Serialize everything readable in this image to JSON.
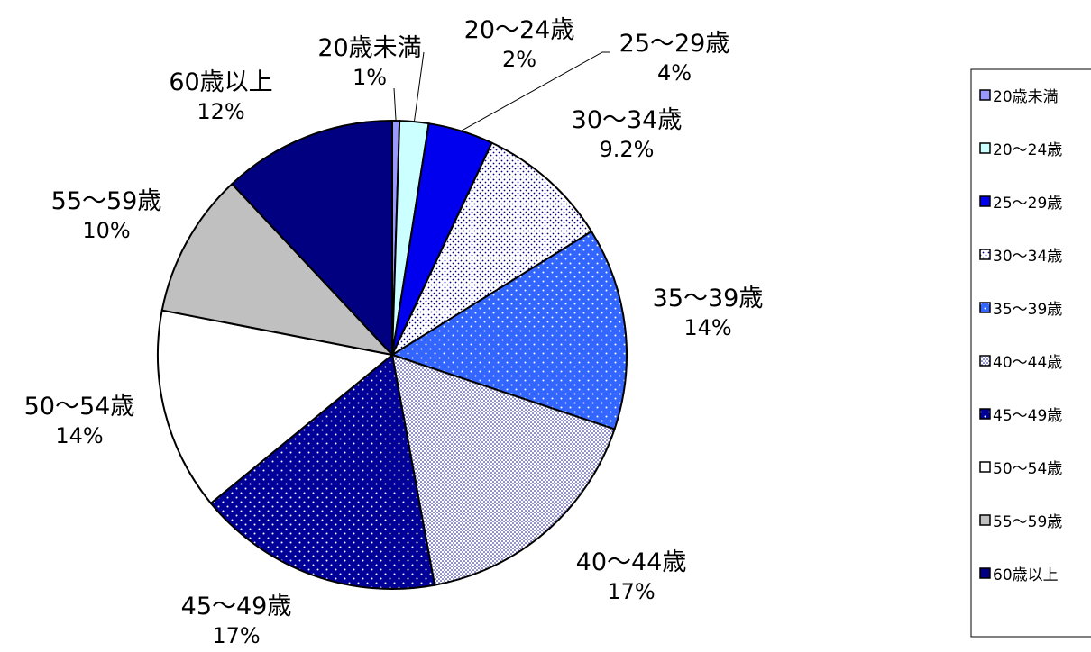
{
  "chart_data": {
    "type": "pie",
    "title": "",
    "categories": [
      "20歳未満",
      "20～24歳",
      "25～29歳",
      "30～34歳",
      "35～39歳",
      "40～44歳",
      "45～49歳",
      "50～54歳",
      "55～59歳",
      "60歳以上"
    ],
    "values": [
      0.5,
      2,
      4.5,
      9.2,
      14,
      17,
      17,
      14,
      10,
      12
    ],
    "percent_labels": [
      "1%",
      "2%",
      "4%",
      "9.2%",
      "14%",
      "17%",
      "17%",
      "14%",
      "10%",
      "12%"
    ],
    "legend_placement": "right",
    "series": [
      {
        "name": "20歳未満",
        "color": "#9999ff",
        "fill": "solid"
      },
      {
        "name": "20～24歳",
        "color": "#ccffff",
        "fill": "solid"
      },
      {
        "name": "25～29歳",
        "color": "#0000ee",
        "fill": "solid"
      },
      {
        "name": "30～34歳",
        "color": "#ffffff",
        "fill": "dots-dark-sparse"
      },
      {
        "name": "35～39歳",
        "color": "#3366ff",
        "fill": "dots-light"
      },
      {
        "name": "40～44歳",
        "color": "#ffffff",
        "fill": "dots-dark-dense"
      },
      {
        "name": "45～49歳",
        "color": "#000099",
        "fill": "dots-light"
      },
      {
        "name": "50～54歳",
        "color": "#ffffff",
        "fill": "solid"
      },
      {
        "name": "55～59歳",
        "color": "#c0c0c0",
        "fill": "solid"
      },
      {
        "name": "60歳以上",
        "color": "#000080",
        "fill": "solid"
      }
    ]
  }
}
